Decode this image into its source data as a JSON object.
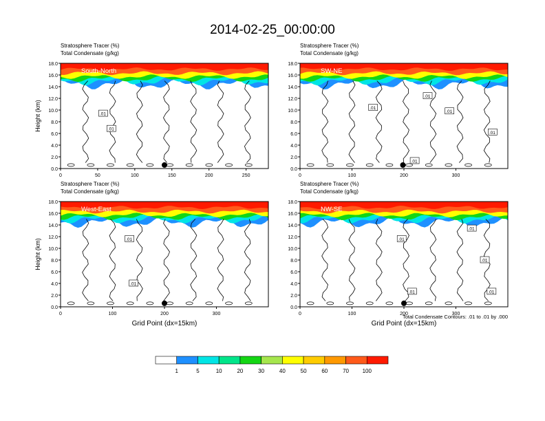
{
  "chart_data": {
    "type": "heatmap",
    "title": "2014-02-25_00:00:00",
    "footnote": "Total Condensate Contours: .01 to .01 by .000",
    "colors": {
      "top_red": "#ff1a00",
      "orange_red": "#ff5a1a",
      "blue": "#1e90ff",
      "cyan": "#00e5e5",
      "green": "#14d614",
      "yellow": "#ffff00",
      "contour": "#000000"
    },
    "colorbar": {
      "labels": [
        "1",
        "5",
        "10",
        "20",
        "30",
        "40",
        "50",
        "60",
        "70",
        "100"
      ],
      "colors": [
        "#ffffff",
        "#1e90ff",
        "#00e5e5",
        "#00e58a",
        "#14d614",
        "#a6e64d",
        "#ffff00",
        "#ffcc00",
        "#ff9900",
        "#ff5a1a",
        "#ff1a00"
      ]
    },
    "panels": [
      {
        "name": "South-North",
        "subtitle1": "Stratosphere Tracer   (%)",
        "subtitle2": "Total Condensate   (g/kg)",
        "ylabel": "Height (km)",
        "xlabel": "",
        "ylim": [
          0,
          18
        ],
        "xlim": [
          0,
          280
        ],
        "yticks": [
          "0.0",
          "2.0",
          "4.0",
          "6.0",
          "8.0",
          "10.0",
          "12.0",
          "14.0",
          "16.0",
          "18.0"
        ],
        "xticks": [
          0,
          50,
          100,
          150,
          200,
          250
        ],
        "contour_labels": [
          {
            "text": ".01",
            "x": 57,
            "y": 9.4
          },
          {
            "text": ".01",
            "x": 68,
            "y": 6.8
          }
        ],
        "marker_x": 140
      },
      {
        "name": "SW-NE",
        "subtitle1": "Stratosphere Tracer   (%)",
        "subtitle2": "Total Condensate   (g/kg)",
        "ylabel": "",
        "xlabel": "",
        "ylim": [
          0,
          18
        ],
        "xlim": [
          0,
          400
        ],
        "yticks": [
          "0.0",
          "2.0",
          "4.0",
          "6.0",
          "8.0",
          "10.0",
          "12.0",
          "14.0",
          "16.0",
          "18.0"
        ],
        "xticks": [
          0,
          100,
          200,
          300
        ],
        "contour_labels": [
          {
            "text": ".01",
            "x": 140,
            "y": 10.4
          },
          {
            "text": ".01",
            "x": 245,
            "y": 12.4
          },
          {
            "text": ".01",
            "x": 287,
            "y": 9.8
          },
          {
            "text": ".01",
            "x": 370,
            "y": 6.2
          },
          {
            "text": ".01",
            "x": 220,
            "y": 1.3
          }
        ],
        "marker_x": 198
      },
      {
        "name": "West-East",
        "subtitle1": "Stratosphere Tracer   (%)",
        "subtitle2": "Total Condensate   (g/kg)",
        "ylabel": "Height (km)",
        "xlabel": "Grid Point (dx=15km)",
        "ylim": [
          0,
          18
        ],
        "xlim": [
          0,
          400
        ],
        "yticks": [
          "0.0",
          "2.0",
          "4.0",
          "6.0",
          "8.0",
          "10.0",
          "12.0",
          "14.0",
          "16.0",
          "18.0"
        ],
        "xticks": [
          0,
          100,
          200,
          300
        ],
        "contour_labels": [
          {
            "text": ".01",
            "x": 132,
            "y": 11.6
          },
          {
            "text": ".01",
            "x": 140,
            "y": 4.0
          }
        ],
        "marker_x": 200
      },
      {
        "name": "NW-SE",
        "subtitle1": "Stratosphere Tracer   (%)",
        "subtitle2": "Total Condensate   (g/kg)",
        "ylabel": "",
        "xlabel": "Grid Point (dx=15km)",
        "ylim": [
          0,
          18
        ],
        "xlim": [
          0,
          400
        ],
        "yticks": [
          "0.0",
          "2.0",
          "4.0",
          "6.0",
          "8.0",
          "10.0",
          "12.0",
          "14.0",
          "16.0",
          "18.0"
        ],
        "xticks": [
          0,
          100,
          200,
          300
        ],
        "contour_labels": [
          {
            "text": ".01",
            "x": 195,
            "y": 11.6
          },
          {
            "text": ".01",
            "x": 330,
            "y": 13.4
          },
          {
            "text": ".01",
            "x": 355,
            "y": 8.0
          },
          {
            "text": ".01",
            "x": 368,
            "y": 2.6
          },
          {
            "text": ".01",
            "x": 215,
            "y": 2.6
          }
        ],
        "marker_x": 200
      }
    ]
  }
}
